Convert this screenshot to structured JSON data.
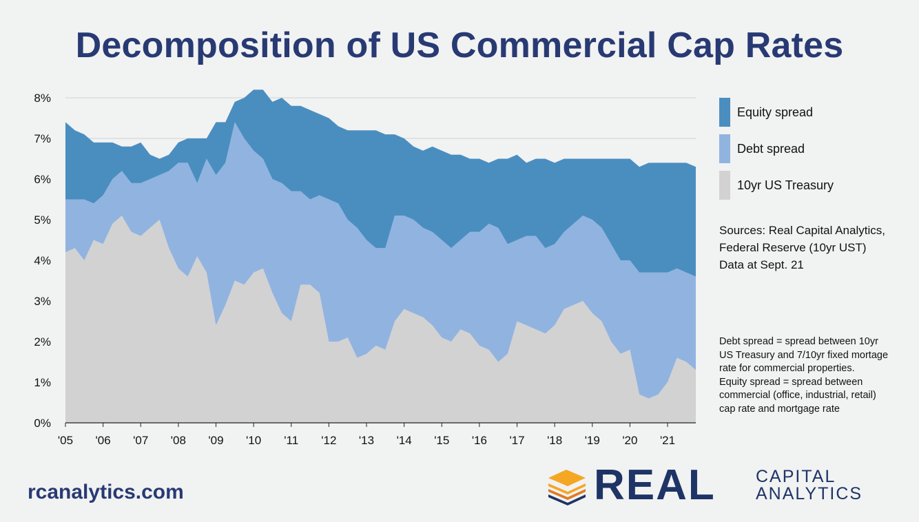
{
  "title": "Decomposition of US Commercial Cap Rates",
  "legend": [
    {
      "label": "Equity spread",
      "color": "#4a8ec0"
    },
    {
      "label": "Debt spread",
      "color": "#91b3e0"
    },
    {
      "label": "10yr US Treasury",
      "color": "#d2d2d2"
    }
  ],
  "sources": [
    "Sources: Real Capital Analytics,",
    "Federal Reserve (10yr UST)",
    "Data at Sept. 21"
  ],
  "note": [
    "Debt spread = spread between 10yr",
    "US Treasury and 7/10yr fixed mortage",
    "rate for commercial properties.",
    "Equity spread = spread between",
    "commercial (office, industrial, retail)",
    "cap rate and mortgage rate"
  ],
  "footer": {
    "website": "rcanalytics.com"
  },
  "logo": {
    "word": "REAL",
    "line1": "CAPITAL",
    "line2": "ANALYTICS"
  },
  "chart_data": {
    "type": "area",
    "stacked": true,
    "y_ticks": [
      "0%",
      "1%",
      "2%",
      "3%",
      "4%",
      "5%",
      "6%",
      "7%",
      "8%"
    ],
    "ylim": [
      0,
      8.3
    ],
    "x_ticks": [
      "'05",
      "'06",
      "'07",
      "'08",
      "'09",
      "'10",
      "'11",
      "'12",
      "'13",
      "'14",
      "'15",
      "'16",
      "'17",
      "'18",
      "'19",
      "'20",
      "'21"
    ],
    "xlim": [
      2005.0,
      2021.75
    ],
    "grid": true,
    "legend_position": "right",
    "x": [
      2005.0,
      2005.25,
      2005.5,
      2005.75,
      2006.0,
      2006.25,
      2006.5,
      2006.75,
      2007.0,
      2007.25,
      2007.5,
      2007.75,
      2008.0,
      2008.25,
      2008.5,
      2008.75,
      2009.0,
      2009.25,
      2009.5,
      2009.75,
      2010.0,
      2010.25,
      2010.5,
      2010.75,
      2011.0,
      2011.25,
      2011.5,
      2011.75,
      2012.0,
      2012.25,
      2012.5,
      2012.75,
      2013.0,
      2013.25,
      2013.5,
      2013.75,
      2014.0,
      2014.25,
      2014.5,
      2014.75,
      2015.0,
      2015.25,
      2015.5,
      2015.75,
      2016.0,
      2016.25,
      2016.5,
      2016.75,
      2017.0,
      2017.25,
      2017.5,
      2017.75,
      2018.0,
      2018.25,
      2018.5,
      2018.75,
      2019.0,
      2019.25,
      2019.5,
      2019.75,
      2020.0,
      2020.25,
      2020.5,
      2020.75,
      2021.0,
      2021.25,
      2021.5,
      2021.75
    ],
    "series": [
      {
        "name": "10yr US Treasury",
        "color": "#d2d2d2",
        "values": [
          4.2,
          4.3,
          4.0,
          4.5,
          4.4,
          4.9,
          5.1,
          4.7,
          4.6,
          4.8,
          5.0,
          4.3,
          3.8,
          3.6,
          4.1,
          3.7,
          2.4,
          2.9,
          3.5,
          3.4,
          3.7,
          3.8,
          3.2,
          2.7,
          2.5,
          3.4,
          3.4,
          3.2,
          2.0,
          2.0,
          2.1,
          1.6,
          1.7,
          1.9,
          1.8,
          2.5,
          2.8,
          2.7,
          2.6,
          2.4,
          2.1,
          2.0,
          2.3,
          2.2,
          1.9,
          1.8,
          1.5,
          1.7,
          2.5,
          2.4,
          2.3,
          2.2,
          2.4,
          2.8,
          2.9,
          3.0,
          2.7,
          2.5,
          2.0,
          1.7,
          1.8,
          0.7,
          0.6,
          0.7,
          1.0,
          1.6,
          1.5,
          1.3
        ]
      },
      {
        "name": "Debt spread",
        "color": "#91b3e0",
        "values": [
          1.3,
          1.2,
          1.5,
          0.9,
          1.2,
          1.1,
          1.1,
          1.2,
          1.3,
          1.2,
          1.1,
          1.9,
          2.6,
          2.8,
          1.8,
          2.8,
          3.7,
          3.5,
          3.9,
          3.6,
          3.0,
          2.7,
          2.8,
          3.2,
          3.2,
          2.3,
          2.1,
          2.4,
          3.5,
          3.4,
          2.9,
          3.2,
          2.8,
          2.4,
          2.5,
          2.6,
          2.3,
          2.3,
          2.2,
          2.3,
          2.4,
          2.3,
          2.2,
          2.5,
          2.8,
          3.1,
          3.3,
          2.7,
          2.0,
          2.2,
          2.3,
          2.1,
          2.0,
          1.9,
          2.0,
          2.1,
          2.3,
          2.3,
          2.4,
          2.3,
          2.2,
          3.0,
          3.1,
          3.0,
          2.7,
          2.2,
          2.2,
          2.3
        ]
      },
      {
        "name": "Equity spread",
        "color": "#4a8ec0",
        "values": [
          1.9,
          1.7,
          1.6,
          1.5,
          1.3,
          0.9,
          0.6,
          0.9,
          1.0,
          0.6,
          0.4,
          0.4,
          0.5,
          0.6,
          1.1,
          0.5,
          1.3,
          1.0,
          0.5,
          1.0,
          1.5,
          1.7,
          1.9,
          2.1,
          2.1,
          2.1,
          2.2,
          2.0,
          2.0,
          1.9,
          2.2,
          2.4,
          2.7,
          2.9,
          2.8,
          2.0,
          1.9,
          1.8,
          1.9,
          2.1,
          2.2,
          2.3,
          2.1,
          1.8,
          1.8,
          1.5,
          1.7,
          2.1,
          2.1,
          1.8,
          1.9,
          2.2,
          2.0,
          1.8,
          1.6,
          1.4,
          1.5,
          1.7,
          2.1,
          2.5,
          2.5,
          2.6,
          2.7,
          2.7,
          2.7,
          2.6,
          2.7,
          2.7
        ]
      }
    ]
  }
}
